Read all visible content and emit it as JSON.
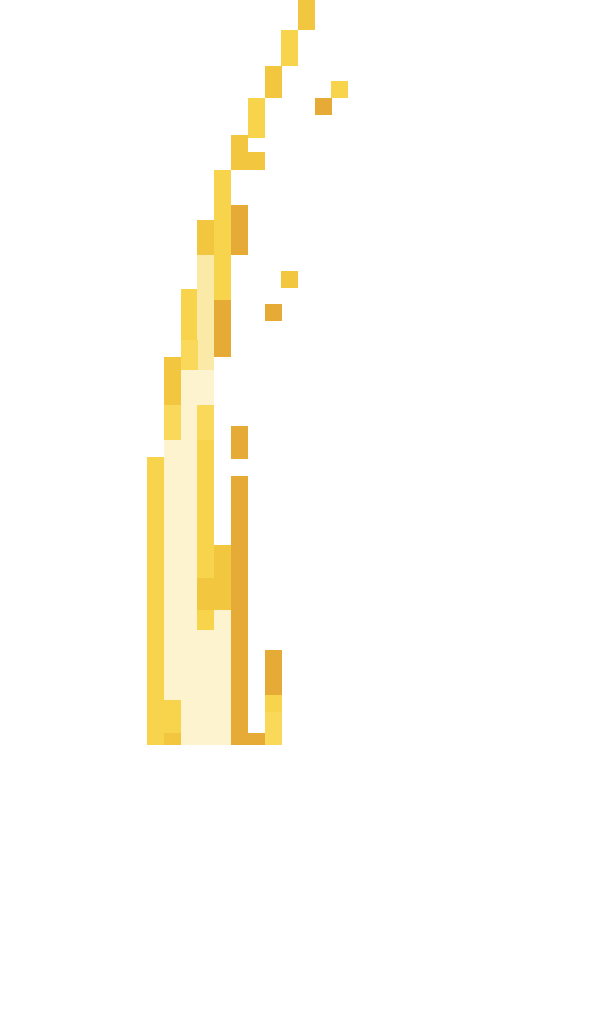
{
  "canvas": {
    "background_color": "#ffffff"
  },
  "sprite": {
    "name": "golden-flame-pixel-sprite",
    "palette": {
      "highlight_pale": "#fdf4cf",
      "highlight_cream": "#fbe9a8",
      "mid_yellow": "#fad95a",
      "bright_yellow": "#f8d44c",
      "gold": "#f3c640",
      "amber": "#e6aa36",
      "shadow_amber": "#dfa030"
    }
  }
}
